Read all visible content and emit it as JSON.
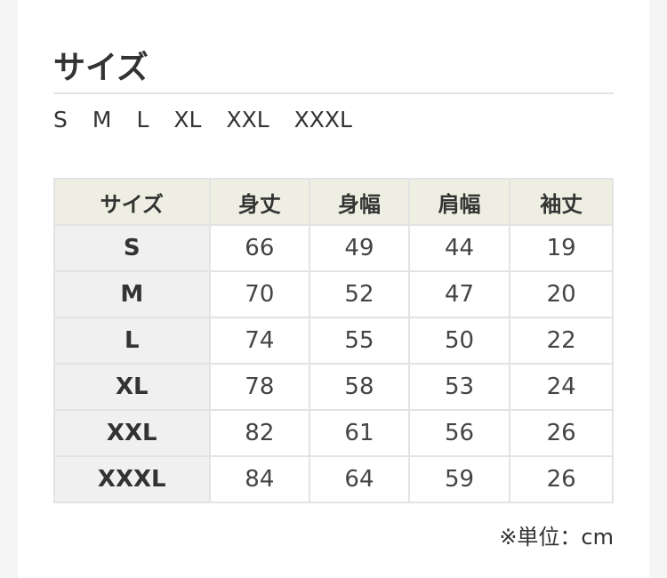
{
  "title": "サイズ",
  "sizes": [
    "S",
    "M",
    "L",
    "XL",
    "XXL",
    "XXXL"
  ],
  "table": {
    "headers": [
      "サイズ",
      "身丈",
      "身幅",
      "肩幅",
      "袖丈"
    ],
    "rows": [
      [
        "S",
        "66",
        "49",
        "44",
        "19"
      ],
      [
        "M",
        "70",
        "52",
        "47",
        "20"
      ],
      [
        "L",
        "74",
        "55",
        "50",
        "22"
      ],
      [
        "XL",
        "78",
        "58",
        "53",
        "24"
      ],
      [
        "XXL",
        "82",
        "61",
        "56",
        "26"
      ],
      [
        "XXXL",
        "84",
        "64",
        "59",
        "26"
      ]
    ]
  },
  "note": "※単位：cm"
}
